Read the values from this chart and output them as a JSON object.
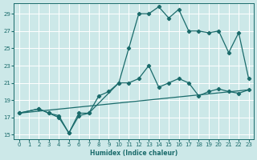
{
  "xlabel": "Humidex (Indice chaleur)",
  "bg_color": "#cce8e8",
  "grid_color": "#ffffff",
  "line_color": "#1a6b6b",
  "xlim": [
    -0.5,
    23.5
  ],
  "ylim": [
    14.5,
    30.2
  ],
  "xticks": [
    0,
    1,
    2,
    3,
    4,
    5,
    6,
    7,
    8,
    9,
    10,
    11,
    12,
    13,
    14,
    15,
    16,
    17,
    18,
    19,
    20,
    21,
    22,
    23
  ],
  "yticks": [
    15,
    17,
    19,
    21,
    23,
    25,
    27,
    29
  ],
  "line1_x": [
    0,
    2,
    3,
    4,
    5,
    6,
    7,
    10,
    11,
    12,
    13,
    14,
    15,
    16,
    17,
    18,
    19,
    20,
    21,
    22,
    23
  ],
  "line1_y": [
    17.5,
    18.0,
    17.5,
    17.0,
    15.2,
    17.5,
    17.5,
    21.0,
    25.0,
    29.0,
    29.0,
    29.8,
    28.5,
    29.5,
    27.0,
    27.0,
    26.8,
    27.0,
    24.5,
    26.8,
    21.5
  ],
  "line2_x": [
    0,
    2,
    3,
    4,
    5,
    6,
    7,
    8,
    9,
    10,
    11,
    12,
    13,
    14,
    15,
    16,
    17,
    18,
    19,
    20,
    21,
    22,
    23
  ],
  "line2_y": [
    17.5,
    18.0,
    17.5,
    17.2,
    15.2,
    17.2,
    17.5,
    19.5,
    20.0,
    21.0,
    21.0,
    21.5,
    23.0,
    20.5,
    21.0,
    21.5,
    21.0,
    19.5,
    20.0,
    20.3,
    20.0,
    19.8,
    20.2
  ],
  "line3_x": [
    0,
    23
  ],
  "line3_y": [
    17.5,
    20.2
  ]
}
